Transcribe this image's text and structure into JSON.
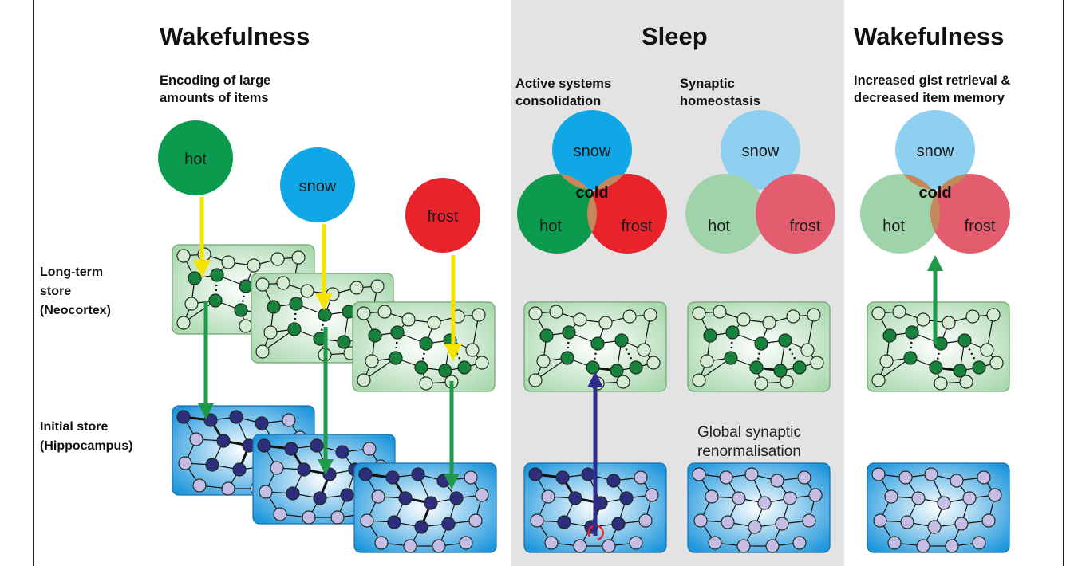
{
  "colors": {
    "green": "#0c9a4e",
    "blue": "#10a7e6",
    "red": "#e8232c",
    "overlap": "#c28a5c",
    "pale_green": "#9fd3aa",
    "pale_blue": "#8fd0f0",
    "pale_red": "#e45d6f",
    "sleep_panel": "#e3e3e3",
    "ltm_box": "#bfe1c3",
    "hippo_box": "#2aa0e0",
    "yellow_arrow": "#f4e400",
    "green_arrow": "#1e9a4a",
    "purple_arrow": "#2d2c8a",
    "dark_node": "#16823c",
    "light_node": "#d6ecd2",
    "navy_node": "#2e2d7e",
    "lavender_node": "#c5bde6"
  },
  "headers": {
    "wake_left": "Wakefulness",
    "sleep": "Sleep",
    "wake_right": "Wakefulness"
  },
  "subheaders": {
    "encoding": [
      "Encoding of large",
      "amounts of items"
    ],
    "active": [
      "Active systems",
      "consolidation"
    ],
    "synaptic": [
      "Synaptic",
      "homeostasis"
    ],
    "gist": [
      "Increased gist retrieval &",
      "decreased item memory"
    ]
  },
  "side_labels": {
    "ltm": [
      "Long-term",
      "store",
      "(Neocortex)"
    ],
    "initial": [
      "Initial store",
      "(Hippocampus)"
    ]
  },
  "words": {
    "hot": "hot",
    "snow": "snow",
    "frost": "frost",
    "cold": "cold"
  },
  "renormalisation": [
    "Global synaptic",
    "renormalisation"
  ]
}
